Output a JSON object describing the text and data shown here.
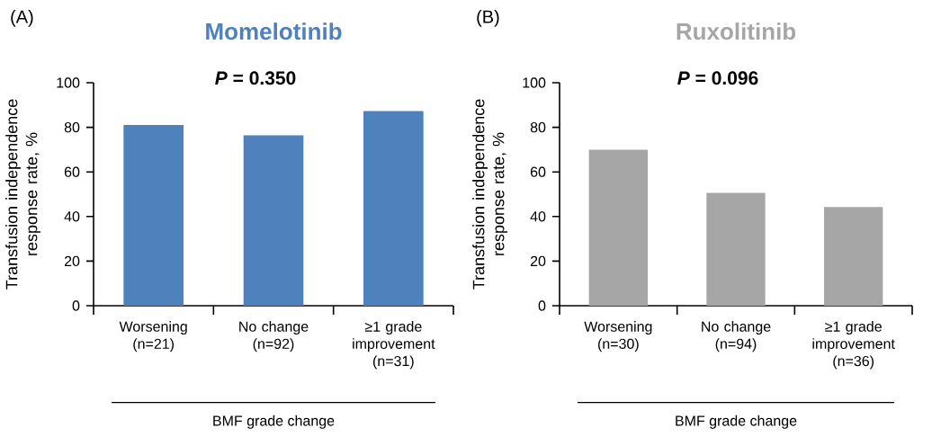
{
  "chart_data": [
    {
      "type": "bar",
      "title": "Momelotinib",
      "subtitle": "*P* = 0.350",
      "ylabel": "Transfusion independence response rate, %",
      "xlabel": "BMF grade change",
      "annotations": [
        "(A)"
      ],
      "categories": [
        "Worsening (n=21)",
        "No change (n=92)",
        "≥1 grade improvement (n=31)"
      ],
      "values": [
        81,
        76.4,
        87.3
      ],
      "color": "#4f81bd",
      "ylim": [
        0,
        100
      ],
      "yticks": [
        0,
        20,
        40,
        60,
        80,
        100
      ]
    },
    {
      "type": "bar",
      "title": "Ruxolitinib",
      "subtitle": "*P* = 0.096",
      "ylabel": "Transfusion independence response rate, %",
      "xlabel": "BMF grade change",
      "annotations": [
        "(B)"
      ],
      "categories": [
        "Worsening (n=30)",
        "No change (n=94)",
        "≥1 grade improvement (n=36)"
      ],
      "values": [
        70,
        50.6,
        44.3
      ],
      "color": "#a6a6a6",
      "ylim": [
        0,
        100
      ],
      "yticks": [
        0,
        20,
        40,
        60,
        80,
        100
      ]
    }
  ]
}
